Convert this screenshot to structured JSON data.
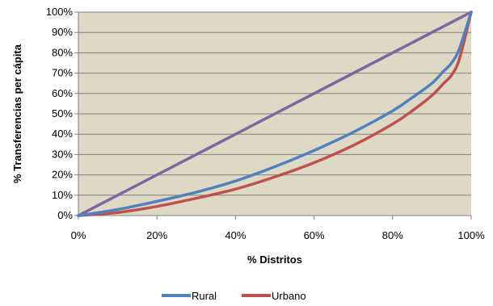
{
  "chart_data": {
    "type": "line",
    "title": "",
    "xlabel": "% Distritos",
    "ylabel": "% Transferencias per cápita",
    "xlim": [
      0,
      100
    ],
    "ylim": [
      0,
      100
    ],
    "x_ticks": [
      "0%",
      "20%",
      "40%",
      "60%",
      "80%",
      "100%"
    ],
    "y_ticks": [
      "0%",
      "10%",
      "20%",
      "30%",
      "40%",
      "50%",
      "60%",
      "70%",
      "80%",
      "90%",
      "100%"
    ],
    "grid": true,
    "legend_position": "bottom",
    "plot_background": "#ddd9c4",
    "series": [
      {
        "name": "Rural",
        "color": "#4f81bd",
        "x": [
          0,
          10,
          20,
          30,
          40,
          50,
          60,
          70,
          80,
          85,
          90,
          93,
          95,
          97,
          100
        ],
        "y": [
          0,
          3,
          7,
          11.5,
          17,
          24,
          32,
          41,
          51.5,
          58,
          65,
          71,
          75,
          82,
          100
        ]
      },
      {
        "name": "Urbano",
        "color": "#c0504d",
        "x": [
          0,
          10,
          20,
          30,
          40,
          50,
          60,
          70,
          80,
          85,
          90,
          93,
          95,
          97,
          100
        ],
        "y": [
          0,
          1.5,
          4.5,
          8.5,
          13,
          19,
          26,
          34.5,
          45,
          51.5,
          59,
          65,
          69,
          77,
          100
        ]
      },
      {
        "name": "",
        "color": "#8064a2",
        "x": [
          0,
          100
        ],
        "y": [
          0,
          100
        ]
      }
    ]
  }
}
